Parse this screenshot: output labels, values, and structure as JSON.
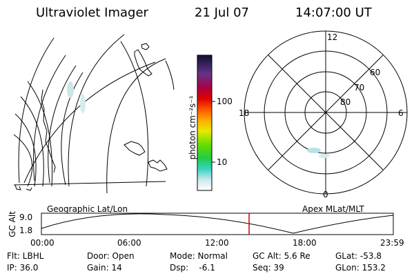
{
  "header": {
    "title": "Ultraviolet Imager",
    "date": "21 Jul 07",
    "time": "14:07:00 UT"
  },
  "colorbar": {
    "unit_label": "photon cm⁻²s⁻¹",
    "ticks": [
      "100",
      "10"
    ]
  },
  "polar": {
    "mlt_labels": [
      "12",
      "18",
      "6",
      "0"
    ],
    "lat_labels": [
      "60",
      "70",
      "80"
    ]
  },
  "map_labels": {
    "left": "Geographic Lat/Lon",
    "right": "Apex MLat/MLT"
  },
  "orbit": {
    "axis_label": "GC Alt",
    "y_ticks": [
      "9.0",
      "1.8"
    ],
    "x_ticks": [
      "00:00",
      "06:00",
      "12:00",
      "18:00",
      "23:59"
    ],
    "marker_color": "#cc0000"
  },
  "footer": {
    "row1": [
      "Flt: LBHL",
      "Door: Open",
      "Mode: Normal",
      "GC Alt: 5.6 Re",
      "GLat: -53.8"
    ],
    "row2": [
      "IP: 36.0",
      "Gain: 14",
      "Dsp:    -6.1",
      "Seq: 39",
      "GLon: 153.2"
    ]
  }
}
